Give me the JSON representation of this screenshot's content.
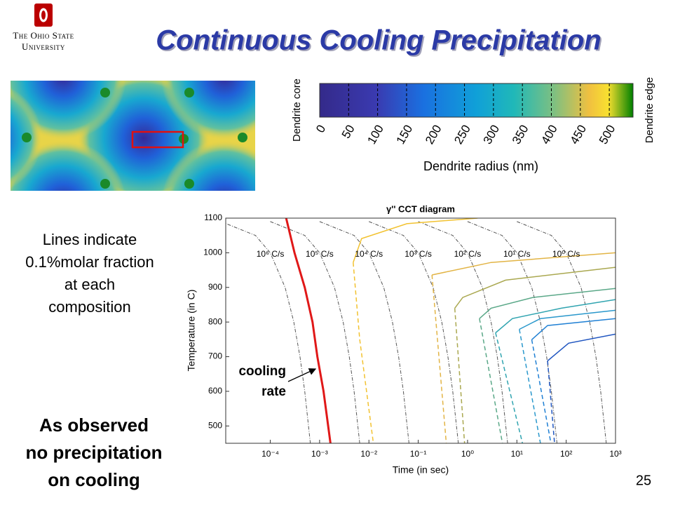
{
  "header": {
    "logo_line1": "The Ohio State",
    "logo_line2": "University",
    "title": "Continuous Cooling Precipitation"
  },
  "colorbar": {
    "label": "Dendrite radius (nm)",
    "low_label": "Dendrite core",
    "high_label": "Dendrite edge",
    "lim": [
      0,
      541
    ],
    "ticks": [
      0,
      50,
      100,
      150,
      200,
      250,
      300,
      350,
      400,
      450,
      500
    ]
  },
  "notes": {
    "lines_text": [
      "Lines indicate",
      "0.1%molar fraction",
      "at each",
      "composition"
    ],
    "observation": [
      "As observed",
      "no precipitation",
      "on cooling"
    ]
  },
  "chart_data": {
    "type": "line",
    "title": "γ'' CCT diagram",
    "x_label": "Time (in sec)",
    "y_label": "Temperature (in C)",
    "xscale": "log",
    "xlim": [
      1.25e-05,
      1000
    ],
    "ylim": [
      450,
      1100
    ],
    "xticks": [
      {
        "value": 0.0001,
        "label": "10⁻⁴"
      },
      {
        "value": 0.001,
        "label": "10⁻³"
      },
      {
        "value": 0.01,
        "label": "10⁻²"
      },
      {
        "value": 0.1,
        "label": "10⁻¹"
      },
      {
        "value": 1,
        "label": "10⁰"
      },
      {
        "value": 10,
        "label": "10¹"
      },
      {
        "value": 100,
        "label": "10²"
      },
      {
        "value": 1000,
        "label": "10³"
      }
    ],
    "yticks": [
      500,
      600,
      700,
      800,
      900,
      1000,
      1100
    ],
    "cooling_color": "#555555",
    "cooling_curves": [
      {
        "name": "10⁶ C/s",
        "x": [
          1e-05,
          5e-05,
          0.0001,
          0.0002,
          0.0003,
          0.0004,
          0.0005,
          0.00065
        ],
        "y": [
          1090,
          1050,
          1000,
          900,
          800,
          700,
          600,
          450
        ]
      },
      {
        "name": "10⁵ C/s",
        "x": [
          0.0001,
          0.0005,
          0.001,
          0.002,
          0.003,
          0.004,
          0.005,
          0.0065
        ],
        "y": [
          1090,
          1050,
          1000,
          900,
          800,
          700,
          600,
          450
        ]
      },
      {
        "name": "10⁴ C/s",
        "x": [
          0.001,
          0.005,
          0.01,
          0.02,
          0.03,
          0.04,
          0.05,
          0.065
        ],
        "y": [
          1090,
          1050,
          1000,
          900,
          800,
          700,
          600,
          450
        ]
      },
      {
        "name": "10³ C/s",
        "x": [
          0.01,
          0.05,
          0.1,
          0.2,
          0.3,
          0.4,
          0.5,
          0.65
        ],
        "y": [
          1090,
          1050,
          1000,
          900,
          800,
          700,
          600,
          450
        ]
      },
      {
        "name": "10² C/s",
        "x": [
          0.1,
          0.5,
          1,
          2,
          3,
          4,
          5,
          6.5
        ],
        "y": [
          1090,
          1050,
          1000,
          900,
          800,
          700,
          600,
          450
        ]
      },
      {
        "name": "10¹ C/s",
        "x": [
          1,
          5,
          10,
          20,
          30,
          40,
          50,
          65
        ],
        "y": [
          1090,
          1050,
          1000,
          900,
          800,
          700,
          600,
          450
        ]
      },
      {
        "name": "10⁰ C/s",
        "x": [
          10,
          50,
          100,
          200,
          300,
          400,
          500,
          650
        ],
        "y": [
          1090,
          1050,
          1000,
          900,
          800,
          700,
          600,
          450
        ]
      }
    ],
    "cooling_path": {
      "color": "#e01818",
      "x": [
        0.00021,
        0.00031,
        0.0005,
        0.00072,
        0.0009,
        0.0012,
        0.00166
      ],
      "y": [
        1100,
        1000,
        900,
        800,
        700,
        600,
        450
      ]
    },
    "precipitation_curves": [
      {
        "color": "#f2c230",
        "solid": {
          "x": [
            0.0048,
            0.0071,
            0.059,
            1.6
          ],
          "y": [
            972,
            1041,
            1084,
            1100
          ]
        },
        "dashed": {
          "x": [
            0.0048,
            0.0053,
            0.0065,
            0.0123
          ],
          "y": [
            972,
            900,
            750,
            450
          ]
        }
      },
      {
        "color": "#e2b445",
        "solid": {
          "x": [
            0.19,
            3,
            1000
          ],
          "y": [
            936,
            972,
            1000
          ]
        },
        "dashed": {
          "x": [
            0.19,
            0.37
          ],
          "y": [
            936,
            450
          ]
        }
      },
      {
        "color": "#aaa850",
        "solid": {
          "x": [
            0.55,
            0.8,
            5.9,
            1000
          ],
          "y": [
            840,
            871,
            921,
            958
          ]
        },
        "dashed": {
          "x": [
            0.55,
            0.87
          ],
          "y": [
            840,
            450
          ]
        }
      },
      {
        "color": "#5aa888",
        "solid": {
          "x": [
            1.74,
            3,
            21,
            1000
          ],
          "y": [
            810,
            840,
            871,
            897
          ]
        },
        "dashed": {
          "x": [
            1.74,
            5.1
          ],
          "y": [
            810,
            450
          ]
        }
      },
      {
        "color": "#30a4b0",
        "solid": {
          "x": [
            3.7,
            8.1,
            80,
            1000
          ],
          "y": [
            769,
            810,
            840,
            865
          ]
        },
        "dashed": {
          "x": [
            3.7,
            13
          ],
          "y": [
            769,
            450
          ]
        }
      },
      {
        "color": "#2a98cc",
        "solid": {
          "x": [
            11.2,
            30,
            1000
          ],
          "y": [
            779,
            810,
            834
          ]
        },
        "dashed": {
          "x": [
            11.2,
            30
          ],
          "y": [
            779,
            450
          ]
        }
      },
      {
        "color": "#2080d4",
        "solid": {
          "x": [
            20,
            42,
            1000
          ],
          "y": [
            749,
            790,
            810
          ]
        },
        "dashed": {
          "x": [
            20,
            49
          ],
          "y": [
            749,
            450
          ]
        }
      },
      {
        "color": "#1f55c0",
        "solid": {
          "x": [
            42,
            112,
            1000
          ],
          "y": [
            688,
            739,
            765
          ]
        },
        "dashed": {
          "x": [
            42,
            58
          ],
          "y": [
            688,
            450
          ]
        }
      }
    ],
    "annotation": [
      "cooling",
      "rate"
    ]
  },
  "page_number": "25"
}
